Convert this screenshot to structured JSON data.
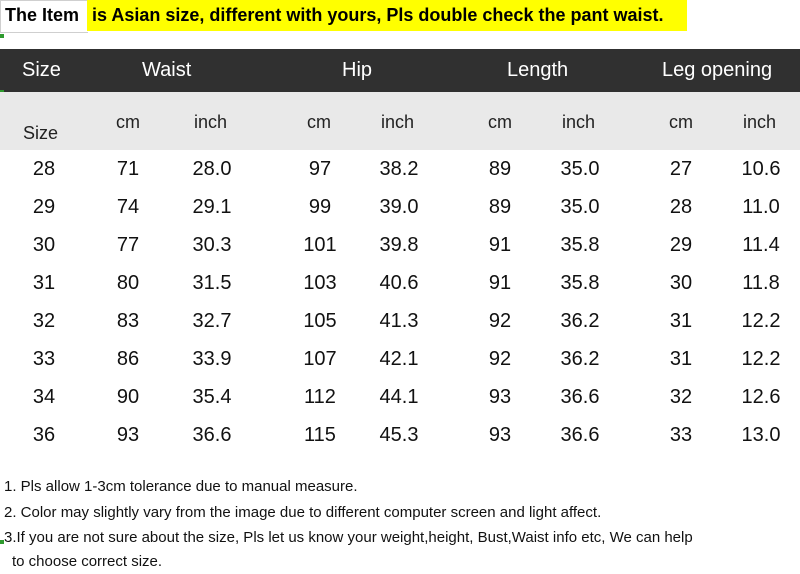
{
  "banner": {
    "item_label": "The Item",
    "warning": "is Asian size, different with yours, Pls double check the pant waist."
  },
  "header": [
    "Size",
    "Waist",
    "Hip",
    "Length",
    "Leg opening"
  ],
  "subheader": {
    "size": "Size",
    "units": [
      "cm",
      "inch",
      "cm",
      "inch",
      "cm",
      "inch",
      "cm",
      "inch"
    ]
  },
  "rows": [
    [
      "28",
      "71",
      "28.0",
      "97",
      "38.2",
      "89",
      "35.0",
      "27",
      "10.6"
    ],
    [
      "29",
      "74",
      "29.1",
      "99",
      "39.0",
      "89",
      "35.0",
      "28",
      "11.0"
    ],
    [
      "30",
      "77",
      "30.3",
      "101",
      "39.8",
      "91",
      "35.8",
      "29",
      "11.4"
    ],
    [
      "31",
      "80",
      "31.5",
      "103",
      "40.6",
      "91",
      "35.8",
      "30",
      "11.8"
    ],
    [
      "32",
      "83",
      "32.7",
      "105",
      "41.3",
      "92",
      "36.2",
      "31",
      "12.2"
    ],
    [
      "33",
      "86",
      "33.9",
      "107",
      "42.1",
      "92",
      "36.2",
      "31",
      "12.2"
    ],
    [
      "34",
      "90",
      "35.4",
      "112",
      "44.1",
      "93",
      "36.6",
      "32",
      "12.6"
    ],
    [
      "36",
      "93",
      "36.6",
      "115",
      "45.3",
      "93",
      "36.6",
      "33",
      "13.0"
    ]
  ],
  "notes": [
    "1. Pls allow 1-3cm tolerance due to manual measure.",
    "2. Color may slightly vary from the image due to different computer screen and light affect.",
    "3.If you are not sure about the size, Pls let us know your weight,height, Bust,Waist info etc, We can help",
    "to choose correct size."
  ],
  "colors": {
    "warning_bg": "#ffff00",
    "header_bg": "#303030",
    "subheader_bg": "#e9e9e9",
    "accent_mark": "#2e9a2e"
  }
}
